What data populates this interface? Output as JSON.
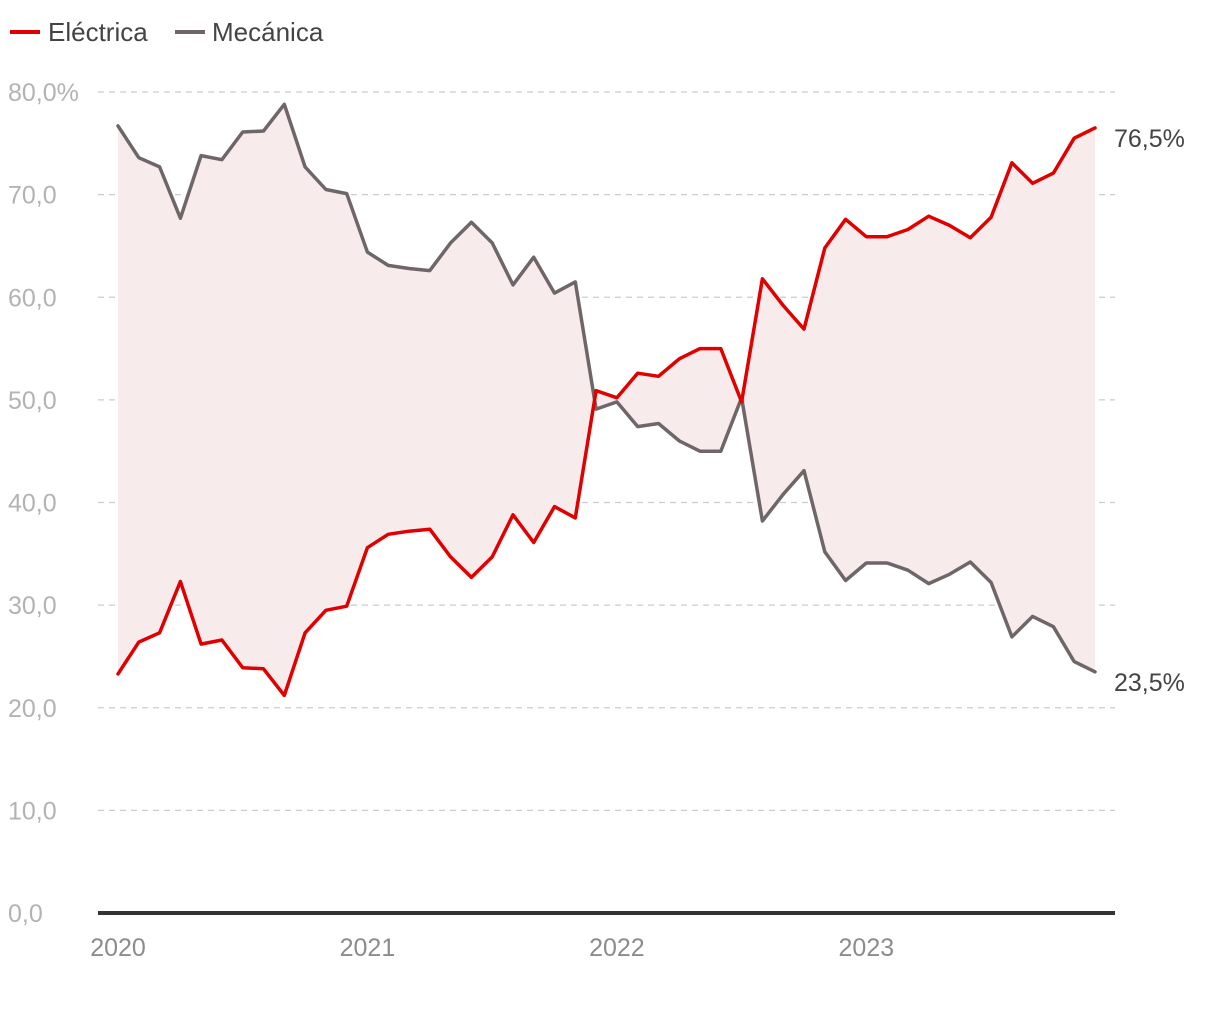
{
  "chart_data": {
    "type": "line",
    "title": "",
    "xlabel": "",
    "ylabel": "",
    "ylim": [
      0,
      80
    ],
    "yticks": [
      0,
      10,
      20,
      30,
      40,
      50,
      60,
      70,
      80
    ],
    "ytick_labels": [
      "0,0",
      "10,0",
      "20,0",
      "30,0",
      "40,0",
      "50,0",
      "60,0",
      "70,0",
      "80,0%"
    ],
    "x_tick_labels": [
      "2020",
      "2021",
      "2022",
      "2023"
    ],
    "x_tick_indices": [
      0,
      12,
      24,
      36
    ],
    "grid": "horizontal dashed",
    "legend": "top-left",
    "fill_between": true,
    "series": [
      {
        "name": "Eléctrica",
        "color": "#e00000",
        "values": [
          23.3,
          26.4,
          27.3,
          32.3,
          26.2,
          26.6,
          23.9,
          23.8,
          21.2,
          27.3,
          29.5,
          29.9,
          35.6,
          36.9,
          37.2,
          37.4,
          34.7,
          32.7,
          34.7,
          38.8,
          36.1,
          39.6,
          38.5,
          50.9,
          50.2,
          52.6,
          52.3,
          54.0,
          55.0,
          55.0,
          49.8,
          61.8,
          59.2,
          56.9,
          64.8,
          67.6,
          65.9,
          65.9,
          66.6,
          67.9,
          67.0,
          65.8,
          67.8,
          73.1,
          71.1,
          72.1,
          75.5,
          76.5
        ],
        "end_label": "76,5%"
      },
      {
        "name": "Mecánica",
        "color": "#6e6668",
        "values": [
          76.7,
          73.6,
          72.7,
          67.7,
          73.8,
          73.4,
          76.1,
          76.2,
          78.8,
          72.7,
          70.5,
          70.1,
          64.4,
          63.1,
          62.8,
          62.6,
          65.3,
          67.3,
          65.3,
          61.2,
          63.9,
          60.4,
          61.5,
          49.1,
          49.8,
          47.4,
          47.7,
          46.0,
          45.0,
          45.0,
          50.2,
          38.2,
          40.8,
          43.1,
          35.2,
          32.4,
          34.1,
          34.1,
          33.4,
          32.1,
          33.0,
          34.2,
          32.2,
          26.9,
          28.9,
          27.9,
          24.5,
          23.5
        ],
        "end_label": "23,5%"
      }
    ]
  }
}
